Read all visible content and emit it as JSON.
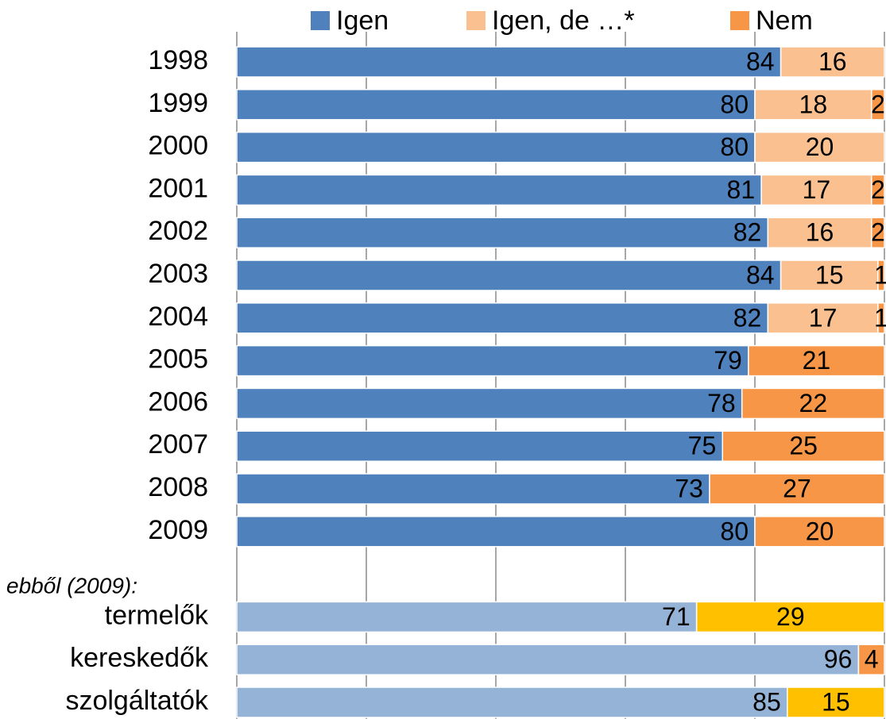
{
  "chart_data": {
    "type": "stacked-barh",
    "annotation": "ebből (2009):",
    "categories": [
      "1998",
      "1999",
      "2000",
      "2001",
      "2002",
      "2003",
      "2004",
      "2005",
      "2006",
      "2007",
      "2008",
      "2009",
      null,
      "termelők",
      "kereskedők",
      "szolgáltatók"
    ],
    "series": [
      {
        "name": "Igen",
        "color": "#4f81bd",
        "colors": [
          "#4f81bd",
          "#4f81bd",
          "#4f81bd",
          "#4f81bd",
          "#4f81bd",
          "#4f81bd",
          "#4f81bd",
          "#4f81bd",
          "#4f81bd",
          "#4f81bd",
          "#4f81bd",
          "#4f81bd",
          "#4f81bd",
          "#95b3d7",
          "#95b3d7",
          "#95b3d7"
        ],
        "label_color": "#ffffff",
        "values": [
          84,
          80,
          80,
          81,
          82,
          84,
          82,
          79,
          78,
          75,
          73,
          80,
          null,
          71,
          96,
          85
        ]
      },
      {
        "name": "Igen, de …*",
        "color": "#fac090",
        "colors": [
          "#fac090",
          "#fac090",
          "#fac090",
          "#fac090",
          "#fac090",
          "#fac090",
          "#fac090",
          "#fac090",
          "#fac090",
          "#fac090",
          "#fac090",
          "#fac090",
          "#fac090",
          "#fac090",
          "#fac090",
          "#fac090"
        ],
        "label_color": "#000000",
        "values": [
          16,
          18,
          20,
          17,
          16,
          15,
          17,
          null,
          null,
          null,
          null,
          null,
          null,
          null,
          null,
          null
        ]
      },
      {
        "name": "Nem",
        "color": "#f79646",
        "colors": [
          "#f79646",
          "#f79646",
          "#f79646",
          "#f79646",
          "#f79646",
          "#f79646",
          "#f79646",
          "#f79646",
          "#f79646",
          "#f79646",
          "#f79646",
          "#f79646",
          "#f79646",
          "#ffc000",
          "#f79646",
          "#ffc000"
        ],
        "label_color": "#000000",
        "values": [
          null,
          2,
          null,
          2,
          2,
          1,
          1,
          21,
          22,
          25,
          27,
          20,
          null,
          29,
          4,
          15
        ]
      }
    ],
    "xlim": [
      0,
      100
    ],
    "xticks": [
      0,
      20,
      40,
      60,
      80,
      100
    ],
    "grid": true,
    "legend": "top"
  }
}
